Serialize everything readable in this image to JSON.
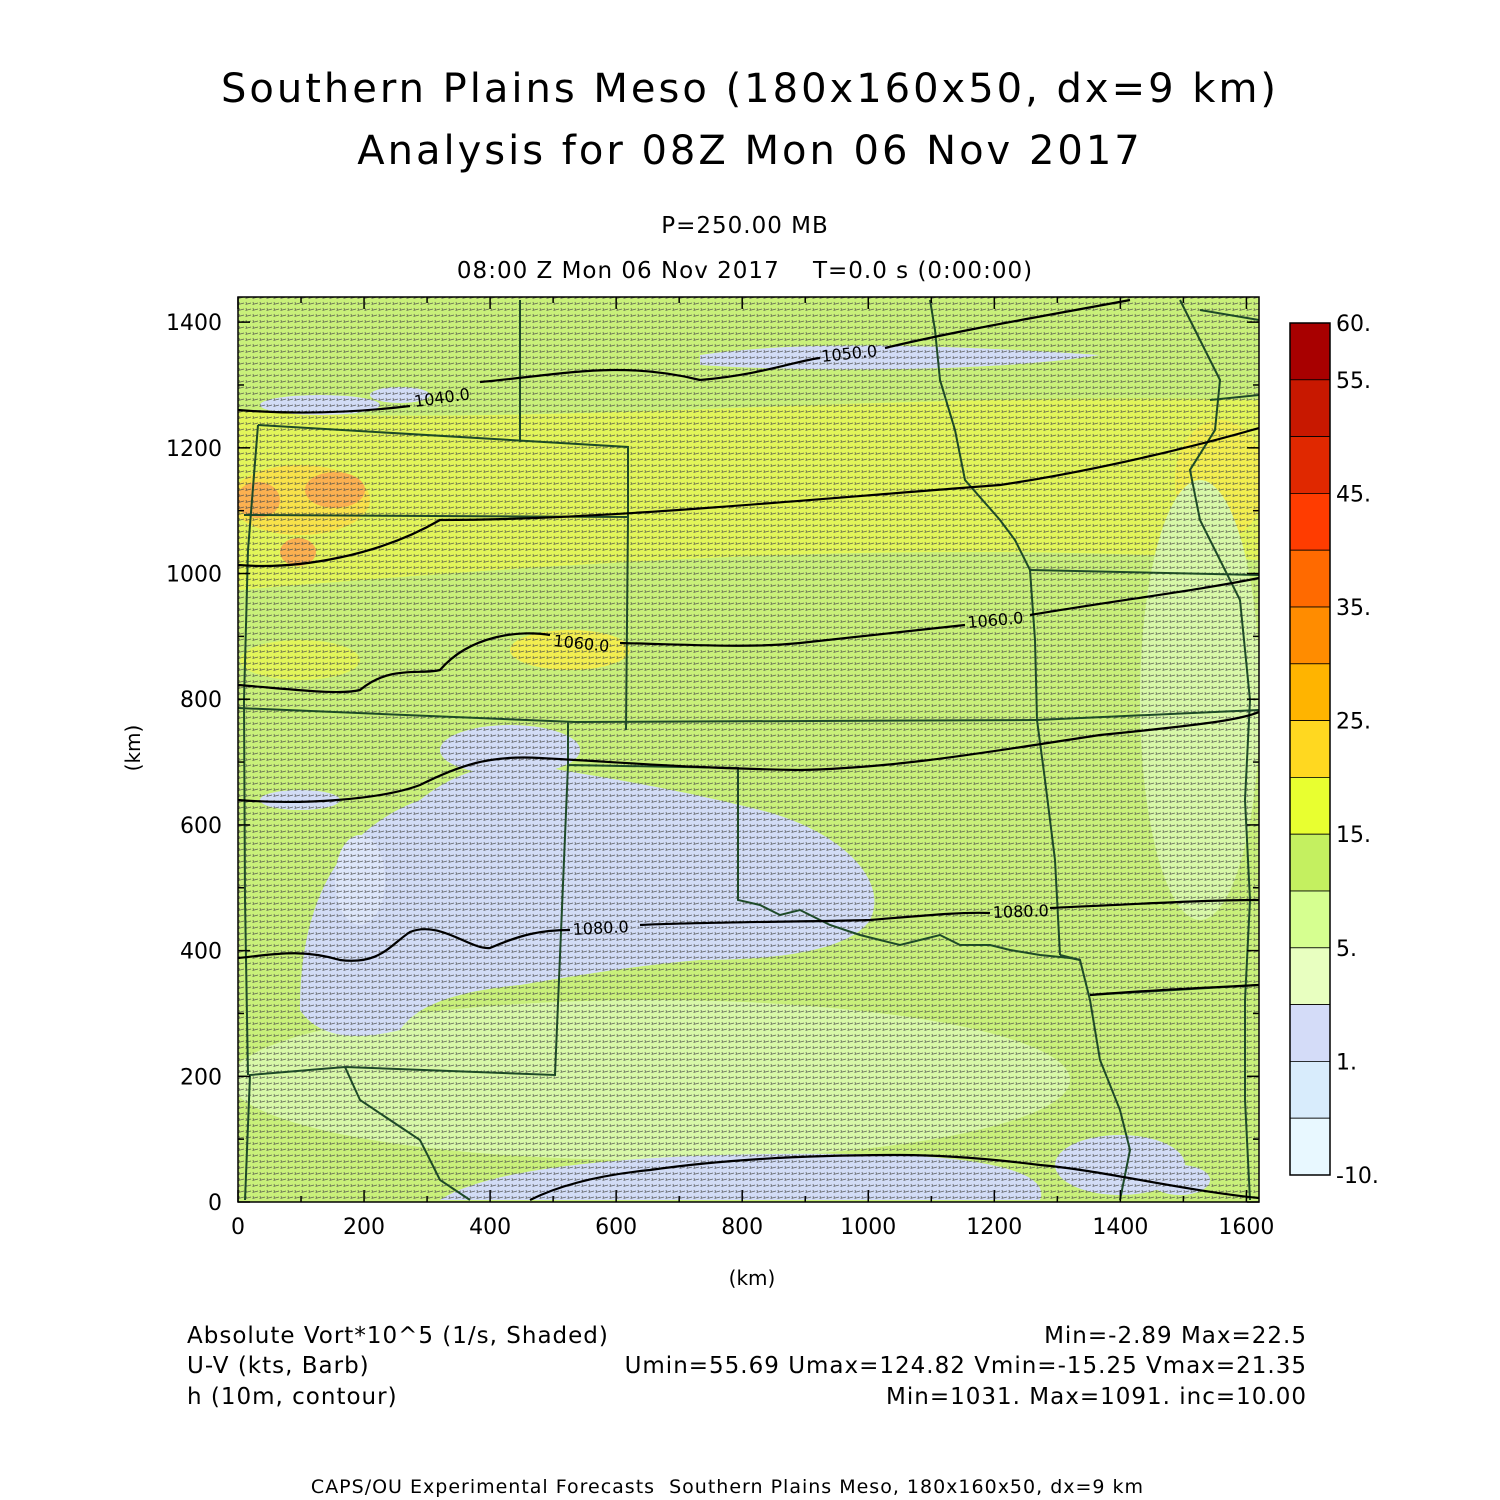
{
  "title": {
    "line1": "Southern Plains Meso (180x160x50, dx=9 km)",
    "line2": "Analysis for 08Z Mon 06 Nov 2017"
  },
  "subtitle": {
    "level": "P=250.00 MB",
    "time": "08:00 Z Mon 06 Nov 2017    T=0.0 s (0:00:00)"
  },
  "axes": {
    "x_label": "(km)",
    "y_label": "(km)",
    "x_range": [
      0,
      1620
    ],
    "y_range": [
      0,
      1440
    ],
    "x_ticks": [
      "0",
      "200",
      "400",
      "600",
      "800",
      "1000",
      "1200",
      "1400",
      "1600"
    ],
    "y_ticks": [
      "0",
      "200",
      "400",
      "600",
      "800",
      "1000",
      "1200",
      "1400"
    ]
  },
  "colorbar": {
    "labels": [
      "60.",
      "55.",
      "45.",
      "35.",
      "25.",
      "15.",
      "5.",
      "1.",
      "-10."
    ],
    "colors": [
      "#a80000",
      "#c81800",
      "#e02800",
      "#ff3c00",
      "#ff6a00",
      "#ff8c00",
      "#ffb400",
      "#ffd820",
      "#e8ff30",
      "#c4f060",
      "#d6ff90",
      "#e8ffc0",
      "#d4dcf8",
      "#d8ecfc",
      "#e8f8ff"
    ]
  },
  "contours": [
    {
      "label": "1040.0",
      "value": 1040
    },
    {
      "label": "1050.0",
      "value": 1050
    },
    {
      "label": "1060.0",
      "value": 1060
    },
    {
      "label": "1060.0",
      "value": 1060
    },
    {
      "label": "1080.0",
      "value": 1080
    },
    {
      "label": "1080.0",
      "value": 1080
    }
  ],
  "footer": {
    "fields": [
      "Absolute Vort*10^5 (1/s, Shaded)",
      "U-V (kts, Barb)",
      "h (10m, contour)"
    ],
    "stats": [
      "Min=-2.89 Max=22.5",
      "Umin=55.69 Umax=124.82 Vmin=-15.25 Vmax=21.35",
      "Min=1031. Max=1091. inc=10.00"
    ]
  },
  "credit": "CAPS/OU Experimental Forecasts  Southern Plains Meso, 180x160x50, dx=9 km"
}
